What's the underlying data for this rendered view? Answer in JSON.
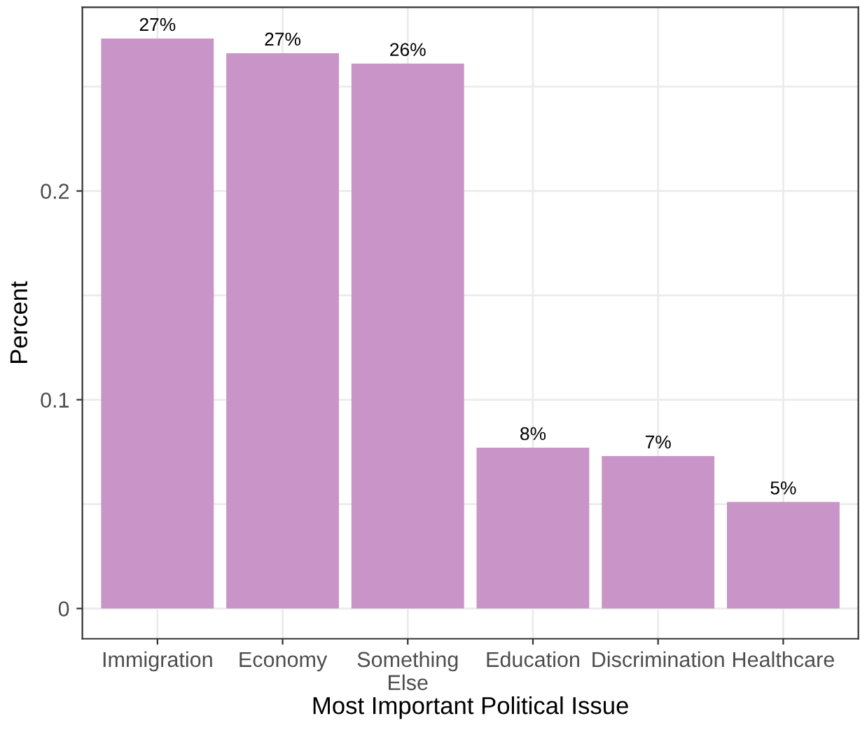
{
  "chart_data": {
    "type": "bar",
    "xlabel": "Most Important Political Issue",
    "ylabel": "Percent",
    "categories": [
      "Immigration",
      "Economy",
      "Something\nElse",
      "Education",
      "Discrimination",
      "Healthcare"
    ],
    "values": [
      0.273,
      0.266,
      0.261,
      0.077,
      0.073,
      0.051
    ],
    "value_labels": [
      "27%",
      "27%",
      "26%",
      "8%",
      "7%",
      "5%"
    ],
    "color": "#c994c7",
    "ylim": [
      -0.0145,
      0.288
    ],
    "yticks": [
      0,
      {
        "value": 0.05,
        "label": null
      },
      0.1,
      {
        "value": 0.15,
        "label": null
      },
      0.2,
      {
        "value": 0.25,
        "label": null
      }
    ],
    "grid": true
  }
}
